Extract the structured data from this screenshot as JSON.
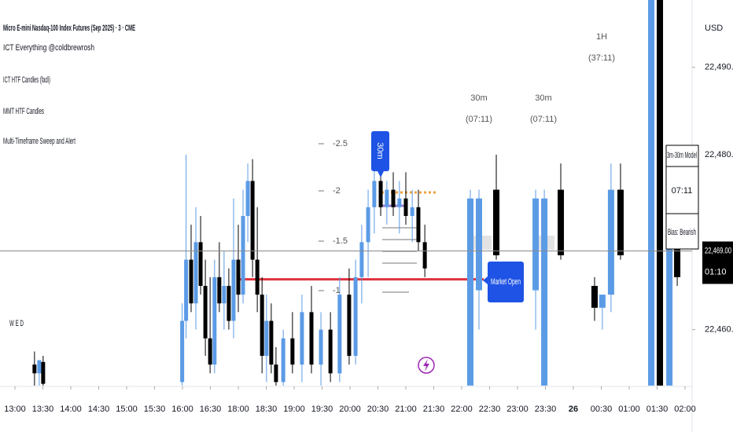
{
  "chart_data": {
    "type": "candlestick",
    "title": "Micro E-mini Nasdaq-100 Index Futures (Sep 2025) · 3 · CME",
    "indicators": [
      "ICT Everything @coldbrewrosh",
      "ICT HTF Candles (fadi)",
      "MMT HTF Candles",
      "Multi-Timeframe Sweep and Alert"
    ],
    "currency": "USD",
    "day_label": "W E D",
    "categories": [
      "13:00",
      "13:30",
      "14:00",
      "14:30",
      "15:00",
      "15:30",
      "16:00",
      "16:30",
      "18:00",
      "18:30",
      "19:00",
      "19:30",
      "20:00",
      "20:30",
      "21:00",
      "21:30",
      "22:00",
      "22:30",
      "23:00",
      "23:30",
      "26",
      "00:30",
      "01:00",
      "01:30",
      "02:00"
    ],
    "ylim": [
      22453.5,
      22497.7
    ],
    "yticks": [
      {
        "value": 22460,
        "label": "22,460.00"
      },
      {
        "value": 22480,
        "label": "22,480.00"
      },
      {
        "value": 22490,
        "label": "22,490.00"
      }
    ],
    "price_line": {
      "value": 22469,
      "label": "22,469.00"
    },
    "countdown": "01:10",
    "up_color": "#5b9be6",
    "down_color": "#000000",
    "candles": {
      "x": [
        0.7,
        0.87,
        1.01,
        5.99,
        6.13,
        6.31,
        6.48,
        6.65,
        6.82,
        6.99,
        7.15,
        7.32,
        7.49,
        7.66,
        7.83,
        8.0,
        8.17,
        8.34,
        8.51,
        8.68,
        8.85,
        9.01,
        9.18,
        9.35,
        9.61,
        9.94,
        10.28,
        10.62,
        10.96,
        11.3,
        11.63,
        11.97,
        12.2,
        12.42,
        12.65,
        12.87,
        13.1,
        13.32,
        13.55,
        13.77,
        14.0,
        14.23,
        14.45,
        14.68
      ],
      "open": [
        22456,
        22455,
        22456.3,
        22454,
        22461,
        22468,
        22463,
        22470,
        22465,
        22459,
        22456,
        22466,
        22463,
        22465,
        22461,
        22468,
        22464,
        22473,
        22477,
        22468,
        22464,
        22457,
        22461,
        22456,
        22454,
        22459,
        22456,
        22462,
        22456,
        22460,
        22455,
        22464,
        22457,
        22466,
        22470,
        22474,
        22477,
        22474,
        22476,
        22474,
        22475,
        22473,
        22474,
        22470
      ],
      "high": [
        22457.5,
        22456.5,
        22457,
        22463,
        22480,
        22472,
        22474,
        22473,
        22468,
        22466,
        22468,
        22470,
        22469,
        22467,
        22475,
        22472,
        22476,
        22479,
        22479.5,
        22474,
        22466,
        22464,
        22463,
        22458,
        22460,
        22462,
        22464,
        22465,
        22462,
        22462,
        22466,
        22467,
        22468,
        22472,
        22476,
        22479,
        22479,
        22477,
        22478,
        22477,
        22478,
        22476,
        22476,
        22472
      ],
      "low": [
        22453.6,
        22453.6,
        22453.6,
        22453.6,
        22459,
        22462,
        22460,
        22464,
        22457,
        22455,
        22455,
        22462,
        22460,
        22460,
        22459,
        22462,
        22463,
        22470,
        22466,
        22462,
        22455,
        22454,
        22455,
        22453.6,
        22453.6,
        22455,
        22454,
        22455,
        22453.6,
        22454,
        22454,
        22456,
        22456,
        22463,
        22466,
        22471,
        22473,
        22472,
        22473,
        22471,
        22472,
        22470,
        22469,
        22466
      ],
      "close": [
        22455,
        22456.5,
        22453.8,
        22461,
        22468,
        22463,
        22470,
        22465,
        22459,
        22456,
        22466,
        22463,
        22465,
        22461,
        22468,
        22464,
        22473,
        22477,
        22468,
        22464,
        22457,
        22461,
        22456,
        22454,
        22459,
        22456,
        22462,
        22456,
        22460,
        22455,
        22464,
        22457,
        22466,
        22470,
        22474,
        22477,
        22474,
        22476,
        22474,
        22475,
        22473,
        22474,
        22470,
        22467
      ]
    },
    "htf_candles": {
      "x": [
        16.31,
        16.62,
        17.24,
        18.65,
        18.96,
        19.55,
        20.76,
        21.04,
        21.35,
        21.69,
        22.79,
        23.1,
        23.44,
        23.72
      ],
      "open": [
        22453.6,
        22464.5,
        22476,
        22464.5,
        22453.6,
        22476,
        22465,
        22462.5,
        22464,
        22476,
        22453.6,
        22497.7,
        22453.6,
        22470
      ],
      "high": [
        22476,
        22476,
        22480,
        22476,
        22476,
        22479,
        22466,
        22464,
        22479,
        22479,
        22497.7,
        22497.7,
        22472,
        22471
      ],
      "low": [
        22453.6,
        22460,
        22468,
        22460,
        22453.6,
        22468,
        22461,
        22460,
        22462,
        22468,
        22453.6,
        22453.6,
        22453.6,
        22465
      ],
      "close": [
        22475,
        22475,
        22468.5,
        22475,
        22475,
        22468.5,
        22462.5,
        22464,
        22476,
        22468.5,
        22497.7,
        22453.6,
        22470,
        22466
      ]
    },
    "sweep_level": 22465.75,
    "sweep_color": "#e0323f",
    "timeframe_labels": [
      {
        "tf": "30m",
        "timer": "(07:11)"
      },
      {
        "tf": "30m",
        "timer": "(07:11)"
      },
      {
        "tf": "1H",
        "timer": "(37:11)"
      }
    ],
    "callouts": [
      "30m",
      "Market Open"
    ],
    "fib_labels": [
      "-2.5",
      "-2",
      "-1.5",
      "-1"
    ],
    "model_table": {
      "title": "3m-30m Model",
      "timer": "07:11",
      "bias": "Bias: Bearish"
    }
  }
}
